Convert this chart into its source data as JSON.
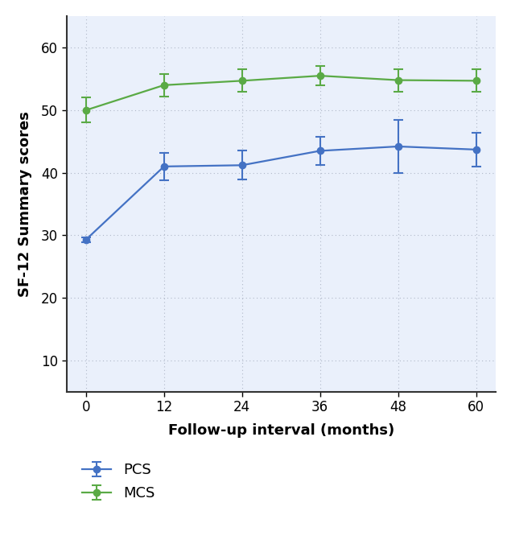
{
  "x": [
    0,
    12,
    24,
    36,
    48,
    60
  ],
  "pcs_y": [
    29.3,
    41.0,
    41.2,
    43.5,
    44.2,
    43.7
  ],
  "pcs_err_lo": [
    0.4,
    2.2,
    2.3,
    2.2,
    4.2,
    2.7
  ],
  "pcs_err_hi": [
    0.4,
    2.2,
    2.3,
    2.2,
    4.2,
    2.7
  ],
  "mcs_y": [
    50.0,
    54.0,
    54.7,
    55.5,
    54.8,
    54.7
  ],
  "mcs_err_lo": [
    2.0,
    1.8,
    1.8,
    1.5,
    1.8,
    1.8
  ],
  "mcs_err_hi": [
    2.0,
    1.8,
    1.8,
    1.5,
    1.8,
    1.8
  ],
  "pcs_color": "#4472c4",
  "mcs_color": "#5aaa45",
  "xlabel": "Follow-up interval (months)",
  "ylabel": "SF-12 Summary scores",
  "xlim": [
    -3,
    63
  ],
  "ylim": [
    5,
    65
  ],
  "yticks": [
    10,
    20,
    30,
    40,
    50,
    60
  ],
  "xticks": [
    0,
    12,
    24,
    36,
    48,
    60
  ],
  "grid_color": "#b0b8c8",
  "plot_bg_color": "#eaf0fb",
  "figure_bg_color": "#ffffff",
  "legend_pcs": "PCS",
  "legend_mcs": "MCS",
  "xlabel_fontsize": 13,
  "ylabel_fontsize": 13,
  "tick_fontsize": 12,
  "legend_fontsize": 13
}
